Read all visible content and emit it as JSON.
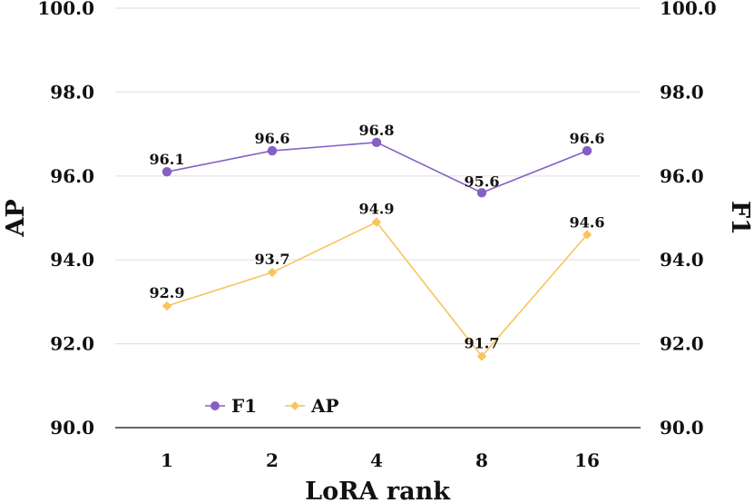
{
  "chart_data": {
    "type": "line",
    "xlabel": "LoRA rank",
    "ylabel_left": "AP",
    "ylabel_right": "F1",
    "categories": [
      "1",
      "2",
      "4",
      "8",
      "16"
    ],
    "ylim": [
      90.0,
      100.0
    ],
    "yticks": [
      "90.0",
      "92.0",
      "94.0",
      "96.0",
      "98.0",
      "100.0"
    ],
    "ytick_values": [
      90,
      92,
      94,
      96,
      98,
      100
    ],
    "grid": true,
    "legend_position": "bottom-left",
    "series": [
      {
        "name": "F1",
        "values": [
          96.1,
          96.6,
          96.8,
          95.6,
          96.6
        ],
        "labels": [
          "96.1",
          "96.6",
          "96.8",
          "95.6",
          "96.6"
        ],
        "color": "#8460c4",
        "marker": "circle"
      },
      {
        "name": "AP",
        "values": [
          92.9,
          93.7,
          94.9,
          91.7,
          94.6
        ],
        "labels": [
          "92.9",
          "93.7",
          "94.9",
          "91.7",
          "94.6"
        ],
        "color": "#f7c45e",
        "marker": "diamond"
      }
    ]
  }
}
